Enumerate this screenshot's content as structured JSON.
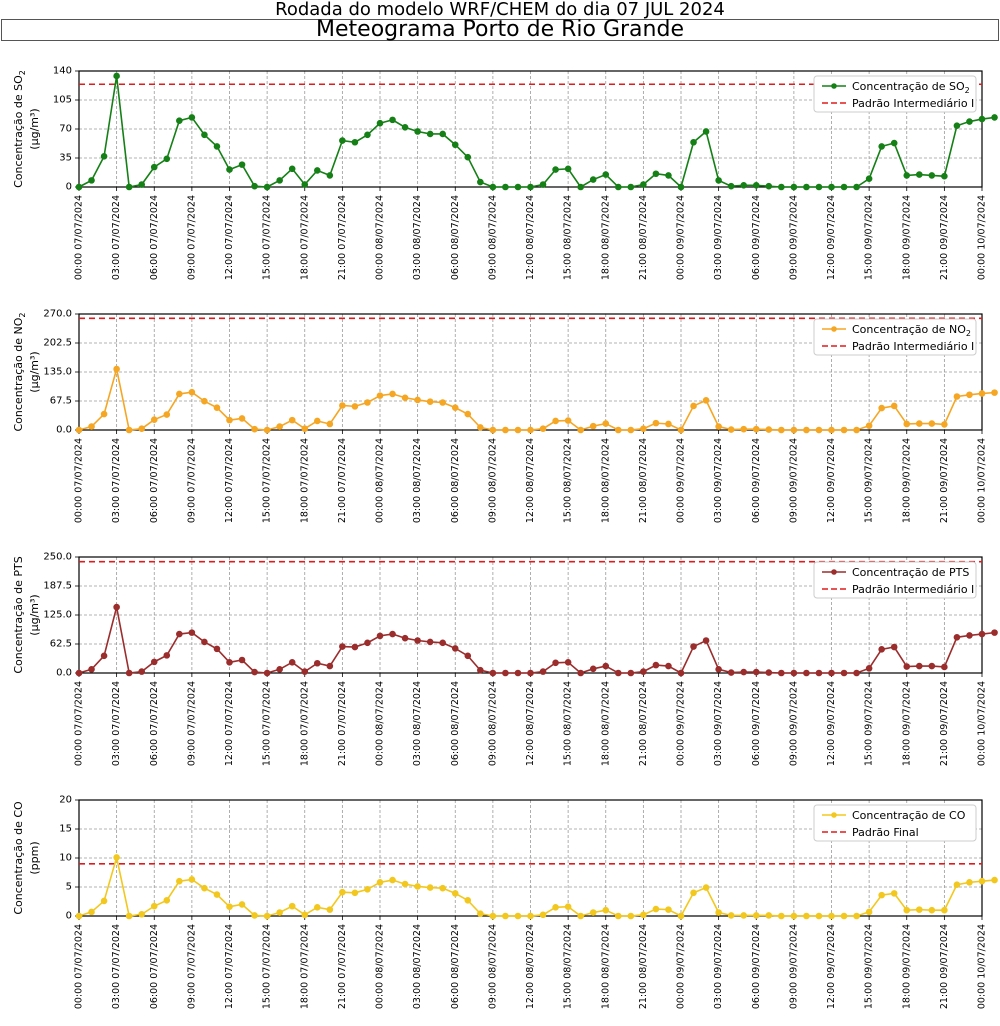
{
  "header": {
    "run_title": "Rodada do modelo WRF/CHEM do dia 07 JUL 2024",
    "station_title": "Meteograma Porto de Rio Grande"
  },
  "x_tick_labels": [
    "00:00 07/07/2024",
    "03:00 07/07/2024",
    "06:00 07/07/2024",
    "09:00 07/07/2024",
    "12:00 07/07/2024",
    "15:00 07/07/2024",
    "18:00 07/07/2024",
    "21:00 07/07/2024",
    "00:00 08/07/2024",
    "03:00 08/07/2024",
    "06:00 08/07/2024",
    "09:00 08/07/2024",
    "12:00 08/07/2024",
    "15:00 08/07/2024",
    "18:00 08/07/2024",
    "21:00 08/07/2024",
    "00:00 09/07/2024",
    "03:00 09/07/2024",
    "06:00 09/07/2024",
    "09:00 09/07/2024",
    "12:00 09/07/2024",
    "15:00 09/07/2024",
    "18:00 09/07/2024",
    "21:00 09/07/2024",
    "00:00 10/07/2024"
  ],
  "chart_data": [
    {
      "type": "line",
      "pollutant": "SO2",
      "ylabel_main": "Concentração de SO",
      "ylabel_sub": "2",
      "ylabel_units": "(μg/m³)",
      "ylim": [
        0,
        140
      ],
      "yticks": [
        "0",
        "35",
        "70",
        "105",
        "140"
      ],
      "ytick_values": [
        0,
        35,
        70,
        105,
        140
      ],
      "color": "#158016",
      "threshold": 124,
      "threshold_color": "#e31a1c",
      "grid": true,
      "legend_position": "top-right",
      "legend": {
        "series_label": "Concentração de SO",
        "series_sub": "2",
        "threshold_label": "Padrão Intermediário I"
      },
      "x_hours_step": 1,
      "values": [
        0,
        8,
        37,
        134,
        0,
        3,
        24,
        34,
        80,
        84,
        63,
        49,
        21,
        27,
        1,
        0,
        8,
        22,
        3,
        20,
        14,
        56,
        54,
        63,
        77,
        81,
        72,
        67,
        64,
        64,
        51,
        36,
        6,
        0,
        0,
        0,
        0,
        3,
        21,
        22,
        0,
        9,
        15,
        0,
        0,
        3,
        16,
        14,
        0,
        54,
        67,
        8,
        1,
        2,
        2,
        1,
        0,
        0,
        0,
        0,
        0,
        0,
        0,
        10,
        49,
        53,
        14,
        15,
        14,
        13,
        74,
        79,
        82,
        84
      ]
    },
    {
      "type": "line",
      "pollutant": "NO2",
      "ylabel_main": "Concentração de NO",
      "ylabel_sub": "2",
      "ylabel_units": "(μg/m³)",
      "ylim": [
        0,
        270
      ],
      "yticks": [
        "0.0",
        "67.5",
        "135.0",
        "202.5",
        "270.0"
      ],
      "ytick_values": [
        0,
        67.5,
        135,
        202.5,
        270
      ],
      "color": "#f5a623",
      "threshold": 260,
      "threshold_color": "#e31a1c",
      "grid": true,
      "legend_position": "top-right",
      "legend": {
        "series_label": "Concentração de NO",
        "series_sub": "2",
        "threshold_label": "Padrão Intermediário I"
      },
      "x_hours_step": 1,
      "values": [
        0,
        8,
        37,
        142,
        0,
        3,
        24,
        36,
        84,
        88,
        67,
        52,
        23,
        27,
        2,
        0,
        8,
        23,
        3,
        21,
        14,
        57,
        55,
        64,
        80,
        84,
        75,
        70,
        66,
        64,
        52,
        37,
        6,
        0,
        0,
        0,
        0,
        3,
        21,
        22,
        0,
        9,
        15,
        0,
        0,
        3,
        16,
        14,
        0,
        56,
        69,
        8,
        1,
        2,
        2,
        1,
        0,
        0,
        0,
        0,
        0,
        0,
        0,
        10,
        51,
        56,
        14,
        15,
        15,
        13,
        78,
        82,
        85,
        87
      ]
    },
    {
      "type": "line",
      "pollutant": "PTS",
      "ylabel_main": "Concentração de PTS",
      "ylabel_sub": "",
      "ylabel_units": "(μg/m³)",
      "ylim": [
        0,
        250
      ],
      "yticks": [
        "0.0",
        "62.5",
        "125.0",
        "187.5",
        "250.0"
      ],
      "ytick_values": [
        0,
        62.5,
        125,
        187.5,
        250
      ],
      "color": "#9b2d2d",
      "threshold": 240,
      "threshold_color": "#e31a1c",
      "grid": true,
      "legend_position": "top-right",
      "legend": {
        "series_label": "Concentração de PTS",
        "series_sub": "",
        "threshold_label": "Padrão Intermediário I"
      },
      "x_hours_step": 1,
      "values": [
        0,
        8,
        37,
        142,
        0,
        3,
        24,
        38,
        84,
        87,
        67,
        52,
        23,
        28,
        2,
        0,
        8,
        23,
        3,
        21,
        15,
        57,
        56,
        65,
        80,
        84,
        75,
        70,
        67,
        65,
        53,
        37,
        6,
        0,
        0,
        0,
        0,
        3,
        22,
        23,
        0,
        9,
        15,
        0,
        0,
        3,
        17,
        15,
        0,
        57,
        70,
        8,
        1,
        2,
        2,
        1,
        0,
        0,
        0,
        0,
        0,
        0,
        0,
        10,
        51,
        56,
        14,
        15,
        15,
        13,
        77,
        81,
        84,
        87
      ]
    },
    {
      "type": "line",
      "pollutant": "CO",
      "ylabel_main": "Concentração de CO",
      "ylabel_sub": "",
      "ylabel_units": "(ppm)",
      "ylim": [
        0,
        20
      ],
      "yticks": [
        "0",
        "5",
        "10",
        "15",
        "20"
      ],
      "ytick_values": [
        0,
        5,
        10,
        15,
        20
      ],
      "color": "#f2c81e",
      "threshold": 9,
      "threshold_color": "#e31a1c",
      "grid": true,
      "legend_position": "top-right",
      "legend": {
        "series_label": "Concentração de CO",
        "series_sub": "",
        "threshold_label": "Padrão Final"
      },
      "x_hours_step": 1,
      "values": [
        0,
        0.7,
        2.6,
        10.1,
        0,
        0.3,
        1.7,
        2.7,
        6.0,
        6.3,
        4.8,
        3.7,
        1.6,
        2.0,
        0.1,
        0,
        0.6,
        1.7,
        0.2,
        1.5,
        1.1,
        4.1,
        4.0,
        4.6,
        5.8,
        6.2,
        5.5,
        5.1,
        4.9,
        4.8,
        3.9,
        2.7,
        0.4,
        0,
        0,
        0,
        0,
        0.2,
        1.5,
        1.6,
        0,
        0.6,
        1.0,
        0,
        0,
        0.2,
        1.2,
        1.1,
        0,
        4.0,
        4.9,
        0.6,
        0.1,
        0.1,
        0.1,
        0.1,
        0,
        0,
        0,
        0,
        0,
        0,
        0,
        0.7,
        3.6,
        3.9,
        1.0,
        1.1,
        1.0,
        1.0,
        5.4,
        5.8,
        6.0,
        6.2
      ]
    }
  ]
}
